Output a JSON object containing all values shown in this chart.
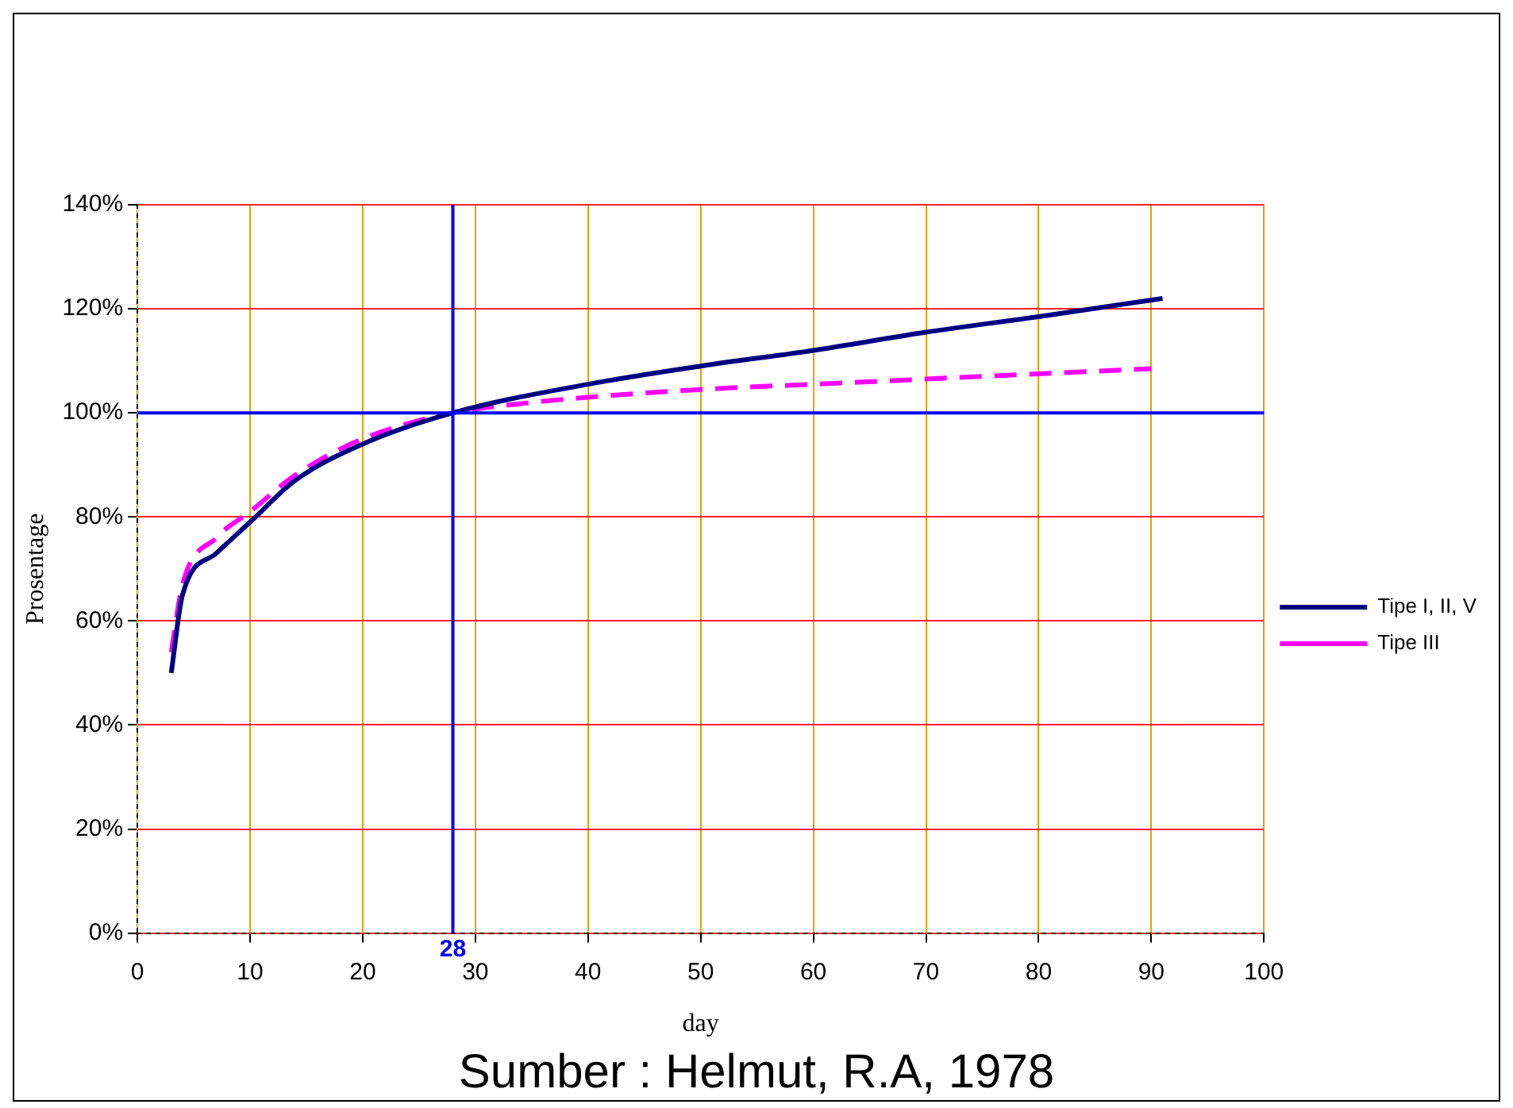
{
  "chart_data": {
    "type": "line",
    "xlabel": "day",
    "ylabel": "Prosentage",
    "series": [
      {
        "name": "Tipe I, II, V",
        "color": "#000080",
        "line_style": "solid",
        "x": [
          3,
          4,
          7,
          10,
          14,
          20,
          28,
          40,
          50,
          60,
          70,
          80,
          91
        ],
        "values": [
          50,
          65,
          73,
          79,
          87,
          94,
          100,
          105.5,
          109,
          112,
          115.5,
          118.5,
          122
        ]
      },
      {
        "name": "Tipe III",
        "color": "#ff00ff",
        "line_style": "dashed",
        "x": [
          3,
          4,
          7,
          10,
          14,
          20,
          28,
          35,
          40,
          50,
          60,
          70,
          80,
          90
        ],
        "values": [
          54,
          67,
          76,
          81,
          88,
          95,
          100,
          102,
          103,
          104.5,
          105.5,
          106.5,
          107.5,
          108.5
        ]
      }
    ],
    "xlim": [
      0,
      100
    ],
    "xticks": [
      0,
      10,
      20,
      30,
      40,
      50,
      60,
      70,
      80,
      90,
      100
    ],
    "ylim": [
      0,
      140
    ],
    "yticks": [
      {
        "value": 0,
        "label": "0%"
      },
      {
        "value": 20,
        "label": "20%"
      },
      {
        "value": 40,
        "label": "40%"
      },
      {
        "value": 60,
        "label": "60%"
      },
      {
        "value": 80,
        "label": "80%"
      },
      {
        "value": 100,
        "label": "100%"
      },
      {
        "value": 120,
        "label": "120%"
      },
      {
        "value": 140,
        "label": "140%"
      }
    ],
    "grid": true,
    "legend": "right",
    "marker": "none",
    "ref_lines": [
      {
        "axis": "x",
        "value": 28,
        "label": "28",
        "color": "#0000ff"
      },
      {
        "axis": "y",
        "value": 100,
        "color": "#0000ff"
      }
    ],
    "annotations": [
      "Sumber : Helmut, R.A, 1978"
    ]
  }
}
